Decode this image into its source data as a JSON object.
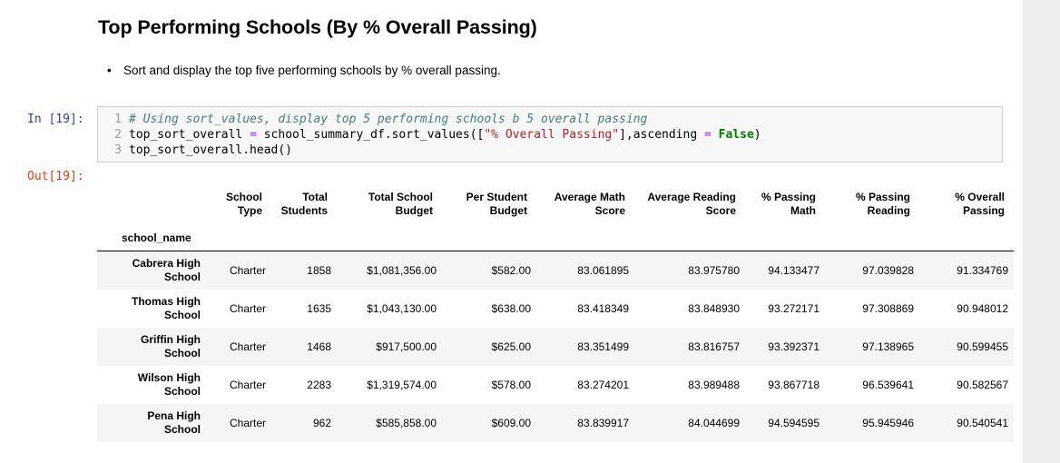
{
  "heading": "Top Performing Schools (By % Overall Passing)",
  "bullet": "Sort and display the top five performing schools by % overall passing.",
  "in_prompt": "In [19]:",
  "out_prompt": "Out[19]:",
  "code": {
    "line_numbers": [
      "1",
      "2",
      "3"
    ],
    "line1_comment": "# Using sort_values, display top 5 performing schools b 5 overall passing",
    "line2_a": "top_sort_overall ",
    "line2_eq1": "=",
    "line2_b": " school_summary_df.sort_values([",
    "line2_str": "\"% Overall Passing\"",
    "line2_c": "],ascending ",
    "line2_eq2": "=",
    "line2_sp": " ",
    "line2_kw": "False",
    "line2_d": ")",
    "line3": "top_sort_overall.head()"
  },
  "table": {
    "columns": [
      "School Type",
      "Total Students",
      "Total School Budget",
      "Per Student Budget",
      "Average Math Score",
      "Average Reading Score",
      "% Passing Math",
      "% Passing Reading",
      "% Overall Passing"
    ],
    "columns_split": [
      [
        "School",
        "Type"
      ],
      [
        "Total",
        "Students"
      ],
      [
        "Total School",
        "Budget"
      ],
      [
        "Per Student",
        "Budget"
      ],
      [
        "Average Math",
        "Score"
      ],
      [
        "Average Reading",
        "Score"
      ],
      [
        "% Passing",
        "Math"
      ],
      [
        "% Passing",
        "Reading"
      ],
      [
        "% Overall",
        "Passing"
      ]
    ],
    "index_name": "school_name",
    "rows": [
      {
        "name": [
          "Cabrera High",
          "School"
        ],
        "values": [
          "Charter",
          "1858",
          "$1,081,356.00",
          "$582.00",
          "83.061895",
          "83.975780",
          "94.133477",
          "97.039828",
          "91.334769"
        ]
      },
      {
        "name": [
          "Thomas High",
          "School"
        ],
        "values": [
          "Charter",
          "1635",
          "$1,043,130.00",
          "$638.00",
          "83.418349",
          "83.848930",
          "93.272171",
          "97.308869",
          "90.948012"
        ]
      },
      {
        "name": [
          "Griffin High",
          "School"
        ],
        "values": [
          "Charter",
          "1468",
          "$917,500.00",
          "$625.00",
          "83.351499",
          "83.816757",
          "93.392371",
          "97.138965",
          "90.599455"
        ]
      },
      {
        "name": [
          "Wilson High",
          "School"
        ],
        "values": [
          "Charter",
          "2283",
          "$1,319,574.00",
          "$578.00",
          "83.274201",
          "83.989488",
          "93.867718",
          "96.539641",
          "90.582567"
        ]
      },
      {
        "name": [
          "Pena High",
          "School"
        ],
        "values": [
          "Charter",
          "962",
          "$585,858.00",
          "$609.00",
          "83.839917",
          "84.044699",
          "94.594595",
          "95.945946",
          "90.540541"
        ]
      }
    ]
  }
}
